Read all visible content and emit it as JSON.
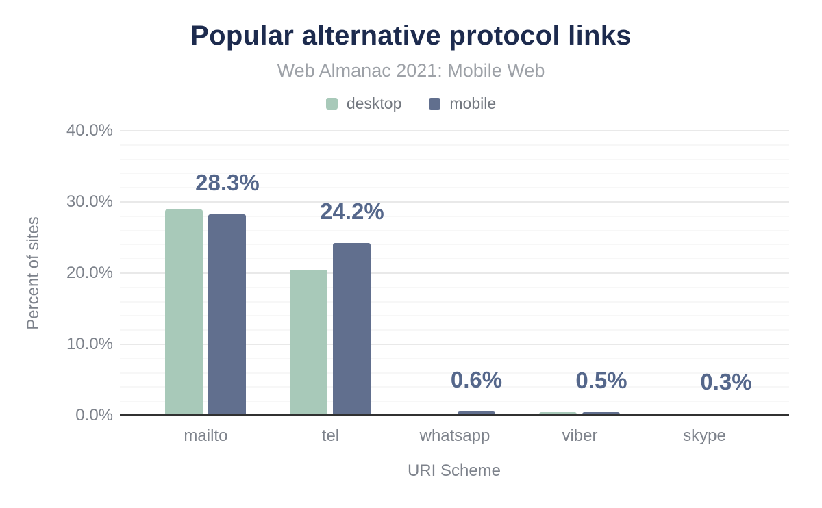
{
  "chart_data": {
    "type": "bar",
    "title": "Popular alternative protocol links",
    "subtitle": "Web Almanac 2021: Mobile Web",
    "xlabel": "URI Scheme",
    "ylabel": "Percent of sites",
    "categories": [
      "mailto",
      "tel",
      "whatsapp",
      "viber",
      "skype"
    ],
    "series": [
      {
        "name": "desktop",
        "color": "#a8c9b9",
        "values": [
          28.9,
          20.5,
          0.3,
          0.5,
          0.3
        ]
      },
      {
        "name": "mobile",
        "color": "#616f8e",
        "values": [
          28.3,
          24.2,
          0.6,
          0.5,
          0.3
        ]
      }
    ],
    "data_labels": {
      "on_series": "mobile",
      "labels": [
        "28.3%",
        "24.2%",
        "0.6%",
        "0.5%",
        "0.3%"
      ]
    },
    "ylim": [
      0,
      40
    ],
    "yticks": [
      {
        "value": 0,
        "label": "0.0%"
      },
      {
        "value": 10,
        "label": "10.0%"
      },
      {
        "value": 20,
        "label": "20.0%"
      },
      {
        "value": 30,
        "label": "30.0%"
      },
      {
        "value": 40,
        "label": "40.0%"
      }
    ],
    "minor_gridline_step": 2,
    "major_gridline_step": 10,
    "grid": "on",
    "legend_position": "top"
  },
  "colors": {
    "title": "#1d2b4e",
    "subtitle": "#9da1a7",
    "axis_text": "#7d828b",
    "data_label": "#55678b",
    "major_gridline": "#e9e9e9",
    "minor_gridline": "#f7f7f7",
    "axis_line": "#313131",
    "background": "#ffffff"
  }
}
